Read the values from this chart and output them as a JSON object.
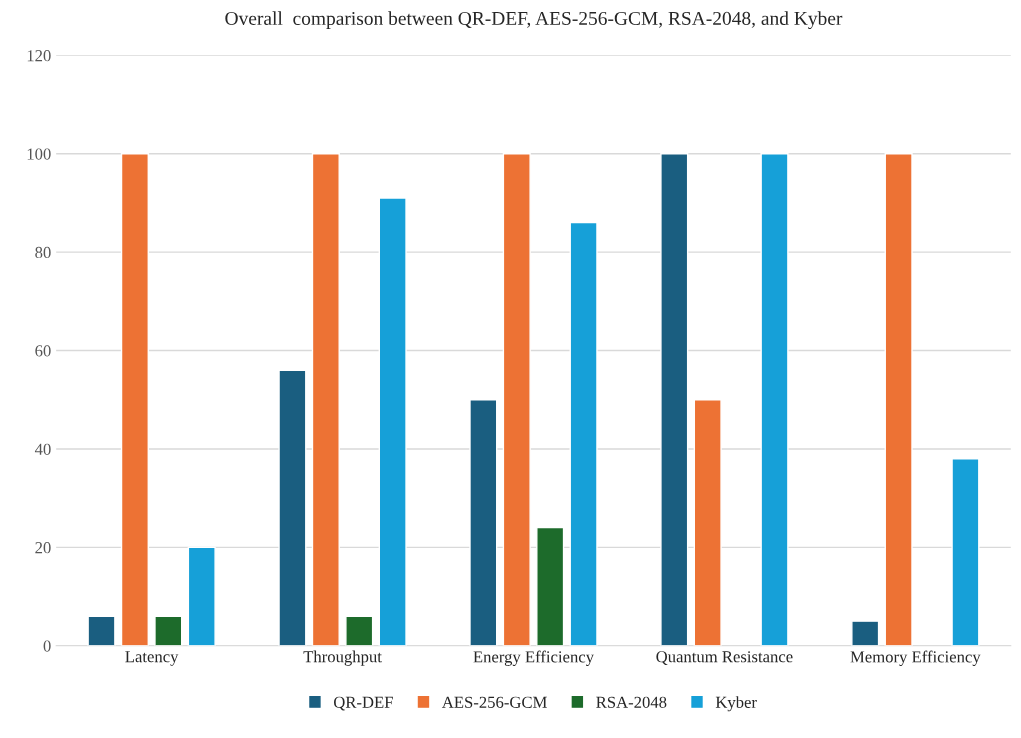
{
  "chart_data": {
    "type": "bar",
    "title": "Overall  comparison between QR-DEF, AES-256-GCM, RSA-2048, and Kyber",
    "categories": [
      "Latency",
      "Throughput",
      "Energy Efficiency",
      "Quantum Resistance",
      "Memory Efficiency"
    ],
    "series": [
      {
        "name": "QR-DEF",
        "color": "#1a5e80",
        "values": [
          6,
          56,
          50,
          100,
          5
        ]
      },
      {
        "name": "AES-256-GCM",
        "color": "#ed7234",
        "values": [
          100,
          100,
          100,
          50,
          100
        ]
      },
      {
        "name": "RSA-2048",
        "color": "#1d6b2b",
        "values": [
          6,
          6,
          24,
          null,
          null
        ]
      },
      {
        "name": "Kyber",
        "color": "#16a0d8",
        "values": [
          20,
          91,
          86,
          100,
          38
        ]
      }
    ],
    "ylim": [
      0,
      120
    ],
    "yticks": [
      0,
      20,
      40,
      60,
      80,
      100,
      120
    ],
    "grid": "y",
    "legend": "bottom"
  }
}
